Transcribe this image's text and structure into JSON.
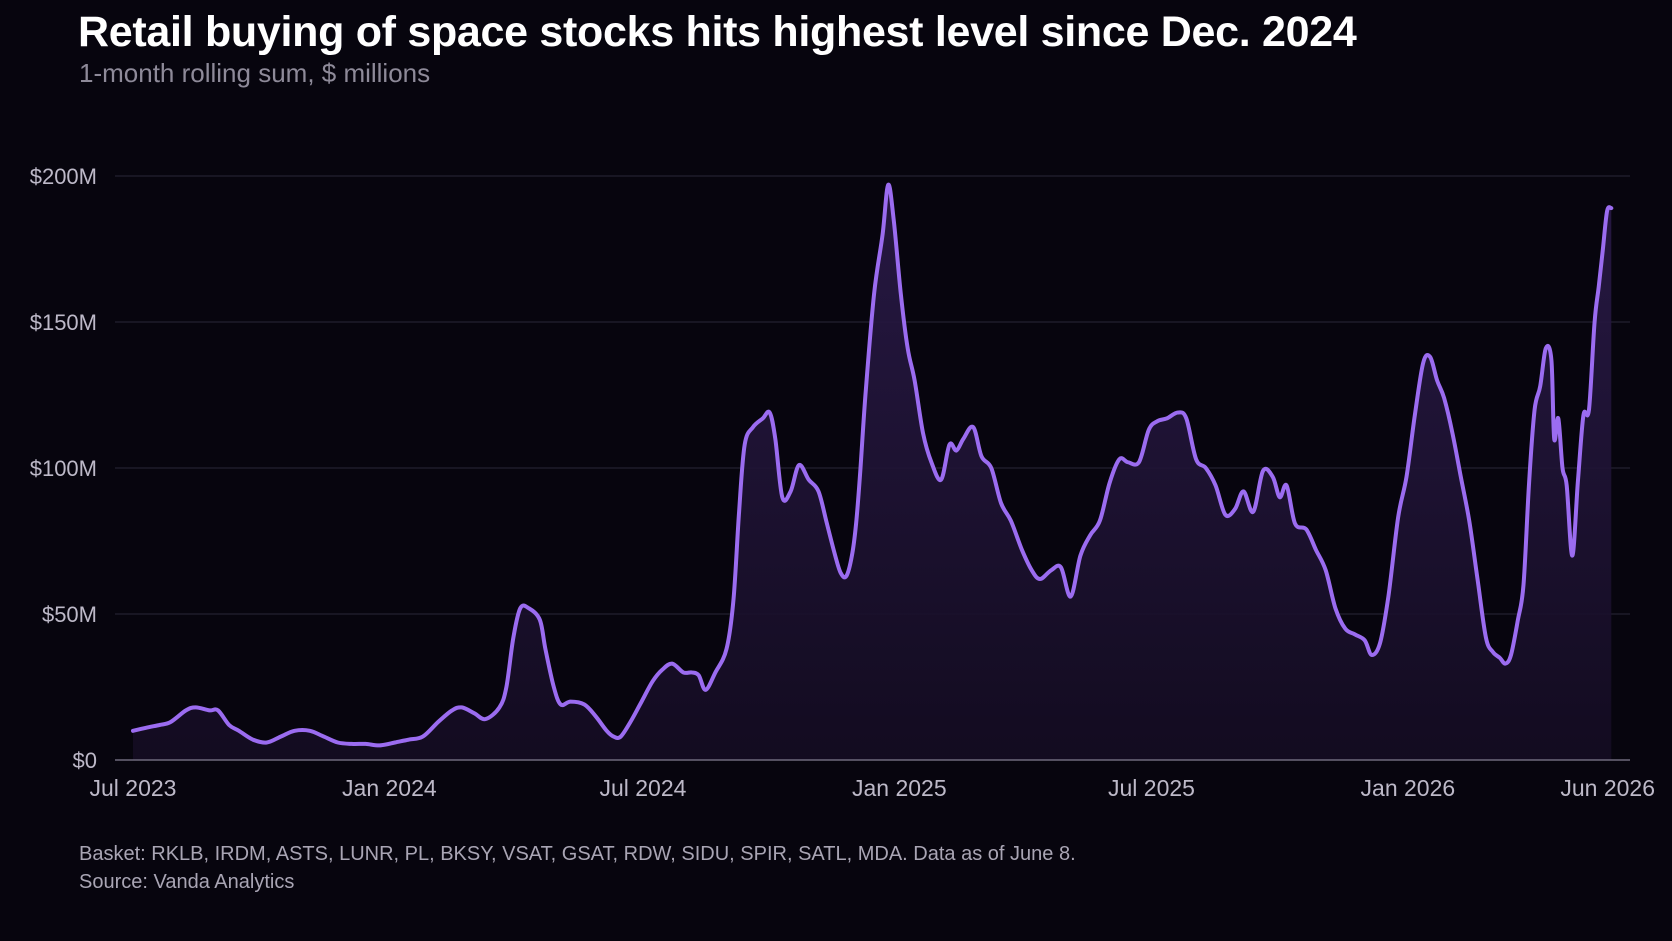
{
  "header": {
    "title": "Retail buying of space stocks hits highest level since Dec. 2024",
    "subtitle": "1-month rolling sum, $ millions"
  },
  "footer": {
    "basket": "Basket: RKLB, IRDM, ASTS, LUNR, PL, BKSY, VSAT, GSAT, RDW, SIDU, SPIR, SATL, MDA. Data as of June 8.",
    "source": "Source: Vanda Analytics"
  },
  "colors": {
    "background": "#07050e",
    "line": "#9b6cf0",
    "fill_top": "#2a1a48",
    "fill_bottom": "#140c22",
    "grid": "#2a2638",
    "tick_text": "#bdb9c8"
  },
  "chart_data": {
    "type": "area",
    "title": "Retail buying of space stocks hits highest level since Dec. 2024",
    "subtitle": "1-month rolling sum, $ millions",
    "xlabel": "",
    "ylabel": "",
    "ylim": [
      0,
      200
    ],
    "xlim": [
      "2023-07-01",
      "2026-06-08"
    ],
    "grid": true,
    "legend": "none",
    "y_ticks": [
      {
        "value": 0,
        "label": "$0"
      },
      {
        "value": 50,
        "label": "$50M"
      },
      {
        "value": 100,
        "label": "$100M"
      },
      {
        "value": 150,
        "label": "$150M"
      },
      {
        "value": 200,
        "label": "$200M"
      }
    ],
    "x_ticks": [
      {
        "date": "2023-07-01",
        "label": "Jul 2023"
      },
      {
        "date": "2024-01-01",
        "label": "Jan 2024"
      },
      {
        "date": "2024-07-01",
        "label": "Jul 2024"
      },
      {
        "date": "2025-01-01",
        "label": "Jan 2025"
      },
      {
        "date": "2025-07-01",
        "label": "Jul 2025"
      },
      {
        "date": "2026-01-01",
        "label": "Jan 2026"
      },
      {
        "date": "2026-06-01",
        "label": "Jun 2026"
      }
    ],
    "series": [
      {
        "values": [
          [
            "2023-07-01",
            10
          ],
          [
            "2023-07-10",
            11
          ],
          [
            "2023-07-20",
            12
          ],
          [
            "2023-07-28",
            13
          ],
          [
            "2023-08-08",
            17
          ],
          [
            "2023-08-15",
            18
          ],
          [
            "2023-08-25",
            17
          ],
          [
            "2023-08-31",
            17
          ],
          [
            "2023-09-08",
            12
          ],
          [
            "2023-09-15",
            10
          ],
          [
            "2023-09-25",
            7
          ],
          [
            "2023-10-05",
            6
          ],
          [
            "2023-10-15",
            8
          ],
          [
            "2023-10-25",
            10
          ],
          [
            "2023-11-05",
            10
          ],
          [
            "2023-11-15",
            8
          ],
          [
            "2023-11-25",
            6
          ],
          [
            "2023-12-05",
            5.5
          ],
          [
            "2023-12-15",
            5.5
          ],
          [
            "2023-12-25",
            5
          ],
          [
            "2024-01-05",
            6
          ],
          [
            "2024-01-15",
            7
          ],
          [
            "2024-01-25",
            8
          ],
          [
            "2024-02-05",
            13
          ],
          [
            "2024-02-15",
            17
          ],
          [
            "2024-02-22",
            18
          ],
          [
            "2024-03-02",
            16
          ],
          [
            "2024-03-10",
            14
          ],
          [
            "2024-03-20",
            18
          ],
          [
            "2024-03-25",
            25
          ],
          [
            "2024-03-30",
            42
          ],
          [
            "2024-04-04",
            52
          ],
          [
            "2024-04-10",
            52
          ],
          [
            "2024-04-18",
            48
          ],
          [
            "2024-04-22",
            38
          ],
          [
            "2024-04-28",
            25
          ],
          [
            "2024-05-03",
            19
          ],
          [
            "2024-05-10",
            20
          ],
          [
            "2024-05-20",
            19
          ],
          [
            "2024-05-28",
            15
          ],
          [
            "2024-06-05",
            10
          ],
          [
            "2024-06-10",
            8
          ],
          [
            "2024-06-15",
            8
          ],
          [
            "2024-06-22",
            13
          ],
          [
            "2024-06-30",
            20
          ],
          [
            "2024-07-08",
            27
          ],
          [
            "2024-07-15",
            31
          ],
          [
            "2024-07-22",
            33
          ],
          [
            "2024-07-30",
            30
          ],
          [
            "2024-08-05",
            30
          ],
          [
            "2024-08-10",
            29
          ],
          [
            "2024-08-15",
            24
          ],
          [
            "2024-08-22",
            30
          ],
          [
            "2024-08-30",
            38
          ],
          [
            "2024-09-04",
            55
          ],
          [
            "2024-09-08",
            85
          ],
          [
            "2024-09-12",
            108
          ],
          [
            "2024-09-18",
            114
          ],
          [
            "2024-09-25",
            117
          ],
          [
            "2024-09-30",
            119
          ],
          [
            "2024-10-04",
            110
          ],
          [
            "2024-10-09",
            90
          ],
          [
            "2024-10-15",
            92
          ],
          [
            "2024-10-21",
            101
          ],
          [
            "2024-10-28",
            96
          ],
          [
            "2024-11-04",
            92
          ],
          [
            "2024-11-10",
            81
          ],
          [
            "2024-11-16",
            70
          ],
          [
            "2024-11-20",
            64
          ],
          [
            "2024-11-24",
            63
          ],
          [
            "2024-11-28",
            70
          ],
          [
            "2024-12-01",
            81
          ],
          [
            "2024-12-04",
            99
          ],
          [
            "2024-12-08",
            127
          ],
          [
            "2024-12-14",
            160
          ],
          [
            "2024-12-20",
            180
          ],
          [
            "2024-12-24",
            197
          ],
          [
            "2024-12-28",
            185
          ],
          [
            "2025-01-02",
            160
          ],
          [
            "2025-01-07",
            141
          ],
          [
            "2025-01-12",
            130
          ],
          [
            "2025-01-18",
            112
          ],
          [
            "2025-01-24",
            102
          ],
          [
            "2025-01-31",
            96
          ],
          [
            "2025-02-06",
            108
          ],
          [
            "2025-02-11",
            106
          ],
          [
            "2025-02-16",
            110
          ],
          [
            "2025-02-23",
            114
          ],
          [
            "2025-03-01",
            104
          ],
          [
            "2025-03-08",
            100
          ],
          [
            "2025-03-15",
            88
          ],
          [
            "2025-03-22",
            82
          ],
          [
            "2025-03-30",
            72
          ],
          [
            "2025-04-06",
            65
          ],
          [
            "2025-04-12",
            62
          ],
          [
            "2025-04-20",
            65
          ],
          [
            "2025-04-27",
            66
          ],
          [
            "2025-05-04",
            56
          ],
          [
            "2025-05-11",
            70
          ],
          [
            "2025-05-18",
            77
          ],
          [
            "2025-05-25",
            82
          ],
          [
            "2025-06-01",
            95
          ],
          [
            "2025-06-08",
            103
          ],
          [
            "2025-06-14",
            102
          ],
          [
            "2025-06-22",
            102
          ],
          [
            "2025-06-29",
            113
          ],
          [
            "2025-07-05",
            116
          ],
          [
            "2025-07-12",
            117
          ],
          [
            "2025-07-20",
            119
          ],
          [
            "2025-07-26",
            117
          ],
          [
            "2025-08-02",
            103
          ],
          [
            "2025-08-09",
            100
          ],
          [
            "2025-08-16",
            94
          ],
          [
            "2025-08-23",
            84
          ],
          [
            "2025-08-30",
            86
          ],
          [
            "2025-09-05",
            92
          ],
          [
            "2025-09-12",
            85
          ],
          [
            "2025-09-19",
            99
          ],
          [
            "2025-09-26",
            97
          ],
          [
            "2025-10-01",
            90
          ],
          [
            "2025-10-06",
            94
          ],
          [
            "2025-10-12",
            81
          ],
          [
            "2025-10-20",
            79
          ],
          [
            "2025-10-27",
            72
          ],
          [
            "2025-11-03",
            65
          ],
          [
            "2025-11-10",
            52
          ],
          [
            "2025-11-17",
            45
          ],
          [
            "2025-11-24",
            43
          ],
          [
            "2025-12-01",
            41
          ],
          [
            "2025-12-06",
            36
          ],
          [
            "2025-12-12",
            40
          ],
          [
            "2025-12-18",
            56
          ],
          [
            "2025-12-25",
            83
          ],
          [
            "2025-12-31",
            97
          ],
          [
            "2026-01-06",
            118
          ],
          [
            "2026-01-12",
            136
          ],
          [
            "2026-01-17",
            138
          ],
          [
            "2026-01-22",
            130
          ],
          [
            "2026-01-27",
            124
          ],
          [
            "2026-02-02",
            112
          ],
          [
            "2026-02-08",
            97
          ],
          [
            "2026-02-14",
            82
          ],
          [
            "2026-02-20",
            62
          ],
          [
            "2026-02-26",
            42
          ],
          [
            "2026-03-03",
            37
          ],
          [
            "2026-03-08",
            35
          ],
          [
            "2026-03-12",
            33
          ],
          [
            "2026-03-16",
            36
          ],
          [
            "2026-03-21",
            48
          ],
          [
            "2026-03-25",
            60
          ],
          [
            "2026-03-29",
            95
          ],
          [
            "2026-04-02",
            120
          ],
          [
            "2026-04-06",
            128
          ],
          [
            "2026-04-10",
            141
          ],
          [
            "2026-04-14",
            137
          ],
          [
            "2026-04-16",
            110
          ],
          [
            "2026-04-19",
            117
          ],
          [
            "2026-04-22",
            100
          ],
          [
            "2026-04-25",
            94
          ],
          [
            "2026-04-29",
            70
          ],
          [
            "2026-05-03",
            95
          ],
          [
            "2026-05-07",
            118
          ],
          [
            "2026-05-11",
            120
          ],
          [
            "2026-05-15",
            150
          ],
          [
            "2026-05-18",
            162
          ],
          [
            "2026-05-21",
            175
          ],
          [
            "2026-05-24",
            188
          ],
          [
            "2026-05-27",
            189
          ]
        ]
      }
    ]
  }
}
